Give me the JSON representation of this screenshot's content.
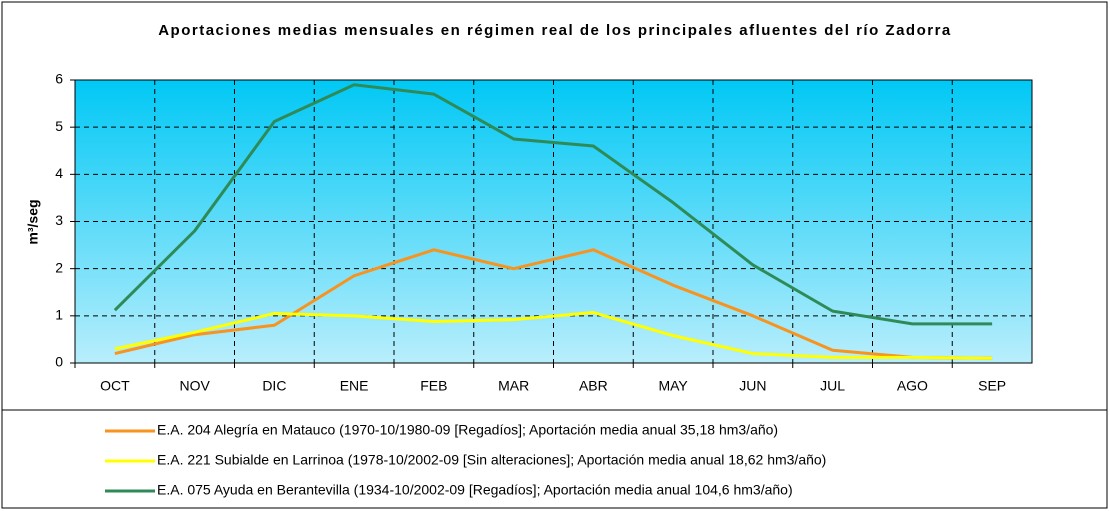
{
  "chart_data": {
    "type": "line",
    "title": "Aportaciones medias mensuales en régimen real de los principales afluentes del río Zadorra",
    "y_label": "m³/seg",
    "categories": [
      "OCT",
      "NOV",
      "DIC",
      "ENE",
      "FEB",
      "MAR",
      "ABR",
      "MAY",
      "JUN",
      "JUL",
      "AGO",
      "SEP"
    ],
    "series": [
      {
        "name": "E.A. 204 Alegría en Matauco (1970-10/1980-09 [Regadíos]; Aportación media anual 35,18 hm3/año)",
        "color": "#f7931e",
        "values": [
          0.2,
          0.6,
          0.8,
          1.85,
          2.4,
          2.0,
          2.4,
          1.65,
          1.0,
          0.27,
          0.12,
          0.1
        ]
      },
      {
        "name": "E.A. 221 Subialde en Larrinoa (1978-10/2002-09 [Sin alteraciones]; Aportación media anual 18,62 hm3/año)",
        "color": "#ffff00",
        "values": [
          0.3,
          0.65,
          1.05,
          1.0,
          0.88,
          0.92,
          1.07,
          0.58,
          0.2,
          0.12,
          0.12,
          0.1
        ]
      },
      {
        "name": "E.A. 075 Ayuda en Berantevilla (1934-10/2002-09 [Regadíos]; Aportación media anual 104,6 hm3/año)",
        "color": "#2e8b57",
        "values": [
          1.12,
          2.8,
          5.12,
          5.9,
          5.7,
          4.75,
          4.6,
          3.4,
          2.08,
          1.1,
          0.83,
          0.83
        ]
      }
    ],
    "ylim": [
      0,
      6
    ],
    "yticks": [
      0,
      1,
      2,
      3,
      4,
      5,
      6
    ],
    "grid": true,
    "legend": "bottom"
  }
}
